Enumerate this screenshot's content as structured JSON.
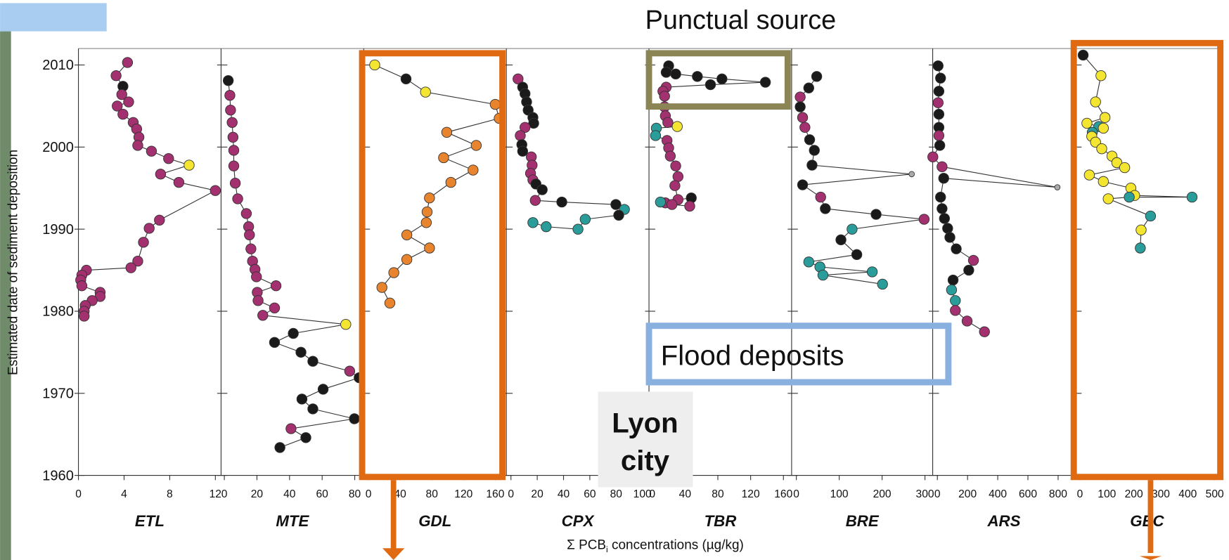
{
  "chart_data": {
    "type": "scatter",
    "ylabel": "Estimated date of sediment deposition",
    "xlabel": [
      "Σ PCB",
      "i",
      " concentrations (µg/kg)"
    ],
    "ylim": [
      1960,
      2012
    ],
    "yticks": [
      1960,
      1970,
      1980,
      1990,
      2000,
      2010
    ],
    "panels": [
      {
        "name": "ETL",
        "xlim": [
          0,
          12.5
        ],
        "xticks": [
          0,
          4,
          8,
          12
        ],
        "x": [
          4.3,
          3.3,
          3.9,
          3.8,
          4.4,
          3.4,
          3.9,
          4.8,
          5.1,
          5.3,
          5.2,
          6.4,
          7.9,
          9.7,
          7.2,
          8.8,
          12,
          7.1,
          6.2,
          5.7,
          5.2,
          4.6,
          0.7,
          0.3,
          0.2,
          0.3,
          1.9,
          1.9,
          1.2,
          0.6,
          0.5,
          0.5
        ],
        "y": [
          2010.3,
          2008.7,
          2007.4,
          2006.4,
          2005.5,
          2005.0,
          2004.0,
          2003.0,
          2002.2,
          2001.2,
          2000.2,
          1999.5,
          1998.6,
          1997.8,
          1996.7,
          1995.7,
          1994.7,
          1991.1,
          1990.1,
          1988.4,
          1986.1,
          1985.3,
          1985.0,
          1984.4,
          1983.8,
          1983.1,
          1982.3,
          1981.8,
          1981.3,
          1980.7,
          1980.0,
          1979.4
        ],
        "colors": [
          "#a3306f",
          "#a3306f",
          "#1a1a1a",
          "#a3306f",
          "#a3306f",
          "#a3306f",
          "#a3306f",
          "#a3306f",
          "#a3306f",
          "#a3306f",
          "#a3306f",
          "#a3306f",
          "#a3306f",
          "#f3e530",
          "#a3306f",
          "#a3306f",
          "#a3306f",
          "#a3306f",
          "#a3306f",
          "#a3306f",
          "#a3306f",
          "#a3306f",
          "#a3306f",
          "#a3306f",
          "#a3306f",
          "#a3306f",
          "#a3306f",
          "#a3306f",
          "#a3306f",
          "#a3306f",
          "#a3306f",
          "#a3306f"
        ]
      },
      {
        "name": "MTE",
        "xlim": [
          -2,
          85.5
        ],
        "xticks": [
          0,
          20,
          40,
          60,
          80
        ],
        "x": [
          2.4,
          3.4,
          3.8,
          4.8,
          5.3,
          5.8,
          5.8,
          6.7,
          8.2,
          13.5,
          14.9,
          15.4,
          16.3,
          17.3,
          18.8,
          19.7,
          31.7,
          20.2,
          20.7,
          30.8,
          23.6,
          74.5,
          42.3,
          30.8,
          47,
          54.3,
          76.9,
          82.7,
          60.6,
          47.6,
          54.3,
          79.8,
          40.9,
          50,
          34.1
        ],
        "y": [
          2008.1,
          2006.3,
          2004.5,
          2003.0,
          2001.2,
          1999.6,
          1997.7,
          1995.6,
          1993.7,
          1991.9,
          1990.3,
          1989.3,
          1987.6,
          1986.1,
          1985.1,
          1984.2,
          1983.1,
          1982.3,
          1981.3,
          1980.4,
          1979.5,
          1978.4,
          1977.3,
          1976.2,
          1975.0,
          1973.9,
          1972.7,
          1971.9,
          1970.5,
          1969.3,
          1968.1,
          1966.9,
          1965.7,
          1964.6,
          1963.4
        ],
        "colors": [
          "#1a1a1a",
          "#a3306f",
          "#a3306f",
          "#a3306f",
          "#a3306f",
          "#a3306f",
          "#a3306f",
          "#a3306f",
          "#a3306f",
          "#a3306f",
          "#a3306f",
          "#a3306f",
          "#a3306f",
          "#a3306f",
          "#a3306f",
          "#a3306f",
          "#a3306f",
          "#a3306f",
          "#a3306f",
          "#a3306f",
          "#a3306f",
          "#f3e530",
          "#1a1a1a",
          "#1a1a1a",
          "#1a1a1a",
          "#1a1a1a",
          "#a3306f",
          "#1a1a1a",
          "#1a1a1a",
          "#1a1a1a",
          "#1a1a1a",
          "#1a1a1a",
          "#a3306f",
          "#1a1a1a",
          "#1a1a1a"
        ]
      },
      {
        "name": "GDL",
        "xlim": [
          -6,
          174
        ],
        "xticks": [
          0,
          40,
          80,
          120,
          160
        ],
        "x": [
          7.9,
          47.4,
          72,
          160,
          165,
          98.8,
          136,
          94.8,
          132,
          104,
          77,
          74,
          73,
          48.4,
          77,
          48.4,
          32,
          17,
          27
        ],
        "y": [
          2010.0,
          2008.3,
          2006.7,
          2005.2,
          2003.5,
          2001.8,
          2000.2,
          1998.7,
          1997.2,
          1995.7,
          1993.8,
          1992.1,
          1990.8,
          1989.3,
          1987.7,
          1986.3,
          1984.7,
          1982.9,
          1981.0
        ],
        "colors": [
          "#f3e530",
          "#1a1a1a",
          "#f3e530",
          "#e8842e",
          "#e8842e",
          "#e8842e",
          "#e8842e",
          "#e8842e",
          "#e8842e",
          "#e8842e",
          "#e8842e",
          "#e8842e",
          "#e8842e",
          "#e8842e",
          "#e8842e",
          "#e8842e",
          "#e8842e",
          "#e8842e",
          "#e8842e"
        ]
      },
      {
        "name": "CPX",
        "xlim": [
          -3.5,
          105
        ],
        "xticks": [
          0,
          20,
          40,
          60,
          80,
          100
        ],
        "x": [
          5.4,
          8.9,
          10.7,
          11.9,
          13.1,
          16.7,
          17.3,
          10.7,
          7.1,
          8.3,
          8.9,
          15.5,
          16.1,
          14.9,
          16.7,
          19,
          23.8,
          18.5,
          38.7,
          79.8,
          86.3,
          82,
          56.5,
          51,
          26.8,
          16.7
        ],
        "y": [
          2008.3,
          2007.3,
          2006.5,
          2005.5,
          2004.5,
          2003.6,
          2002.9,
          2002.4,
          2001.4,
          2000.3,
          1999.5,
          1998.8,
          1997.8,
          1996.8,
          1996.0,
          1995.5,
          1994.8,
          1993.5,
          1993.3,
          1993.0,
          1992.4,
          1991.7,
          1991.2,
          1990.0,
          1990.3,
          1990.8
        ],
        "colors": [
          "#a3306f",
          "#1a1a1a",
          "#1a1a1a",
          "#1a1a1a",
          "#1a1a1a",
          "#1a1a1a",
          "#1a1a1a",
          "#a3306f",
          "#a3306f",
          "#1a1a1a",
          "#1a1a1a",
          "#a3306f",
          "#a3306f",
          "#a3306f",
          "#a3306f",
          "#1a1a1a",
          "#1a1a1a",
          "#a3306f",
          "#1a1a1a",
          "#1a1a1a",
          "#2a9d9b",
          "#1a1a1a",
          "#2a9d9b",
          "#2a9d9b",
          "#2a9d9b",
          "#2a9d9b"
        ]
      },
      {
        "name": "TBR",
        "xlim": [
          -4,
          170
        ],
        "xticks": [
          0,
          40,
          80,
          120,
          160
        ],
        "x": [
          20,
          17,
          28.6,
          55,
          85,
          138,
          71,
          17,
          13,
          15,
          15,
          16,
          19,
          30.5,
          5,
          4,
          18,
          20,
          22,
          28.6,
          31.4,
          27.6,
          31.4,
          16,
          10,
          47.6,
          45.7,
          24
        ],
        "y": [
          2009.9,
          2009.1,
          2008.9,
          2008.6,
          2008.3,
          2007.9,
          2007.6,
          2007.3,
          2006.8,
          2006.2,
          2004.9,
          2003.8,
          2003.0,
          2002.5,
          2002.3,
          2001.4,
          2000.8,
          1999.9,
          1998.9,
          1997.7,
          1996.4,
          1995.3,
          1993.6,
          1993.2,
          1993.3,
          1993.8,
          1992.8,
          1993.0
        ],
        "colors": [
          "#1a1a1a",
          "#1a1a1a",
          "#1a1a1a",
          "#1a1a1a",
          "#1a1a1a",
          "#1a1a1a",
          "#1a1a1a",
          "#a3306f",
          "#a3306f",
          "#a3306f",
          "#a3306f",
          "#a3306f",
          "#a3306f",
          "#f3e530",
          "#2a9d9b",
          "#2a9d9b",
          "#a3306f",
          "#a3306f",
          "#a3306f",
          "#a3306f",
          "#a3306f",
          "#a3306f",
          "#a3306f",
          "#a3306f",
          "#2a9d9b",
          "#1a1a1a",
          "#a3306f",
          "#a3306f"
        ]
      },
      {
        "name": "BRE",
        "xlim": [
          -11,
          318
        ],
        "xticks": [
          0,
          100,
          200,
          300
        ],
        "x": [
          47.5,
          29,
          9,
          9,
          14.6,
          20,
          31,
          42,
          36.6,
          269,
          14.6,
          56.7,
          67.6,
          186,
          298,
          130,
          104,
          141,
          29,
          55,
          177,
          62,
          201
        ],
        "y": [
          2008.6,
          2007.2,
          2006.1,
          2004.9,
          2003.6,
          2002.4,
          2000.9,
          1999.6,
          1997.8,
          1996.7,
          1995.4,
          1993.9,
          1992.5,
          1991.8,
          1991.2,
          1990.0,
          1988.7,
          1986.9,
          1986.0,
          1985.4,
          1984.8,
          1984.4,
          1983.3
        ],
        "colors": [
          "#1a1a1a",
          "#1a1a1a",
          "#a3306f",
          "#1a1a1a",
          "#a3306f",
          "#a3306f",
          "#1a1a1a",
          "#1a1a1a",
          "#1a1a1a",
          "#aaaaaa",
          "#1a1a1a",
          "#a3306f",
          "#1a1a1a",
          "#1a1a1a",
          "#a3306f",
          "#2a9d9b",
          "#1a1a1a",
          "#1a1a1a",
          "#2a9d9b",
          "#2a9d9b",
          "#2a9d9b",
          "#2a9d9b",
          "#2a9d9b"
        ]
      },
      {
        "name": "ARS",
        "xlim": [
          -31,
          914
        ],
        "xticks": [
          0,
          200,
          400,
          600,
          800
        ],
        "x": [
          5,
          21,
          10,
          5,
          10,
          10,
          10,
          16,
          -30,
          31,
          795,
          42,
          21,
          31,
          47,
          68,
          83,
          125,
          239,
          208,
          104,
          94,
          119,
          119,
          197,
          312
        ],
        "y": [
          2009.9,
          2008.4,
          2006.8,
          2005.4,
          2004.0,
          2002.4,
          2001.4,
          2000.2,
          1998.8,
          1997.6,
          1995.1,
          1996.2,
          1993.9,
          1992.5,
          1991.3,
          1990.1,
          1989.0,
          1987.6,
          1986.2,
          1985.0,
          1983.8,
          1982.6,
          1981.3,
          1980.1,
          1978.8,
          1977.5
        ],
        "colors": [
          "#1a1a1a",
          "#1a1a1a",
          "#1a1a1a",
          "#a3306f",
          "#1a1a1a",
          "#1a1a1a",
          "#a3306f",
          "#1a1a1a",
          "#a3306f",
          "#a3306f",
          "#aaaaaa",
          "#1a1a1a",
          "#1a1a1a",
          "#1a1a1a",
          "#1a1a1a",
          "#1a1a1a",
          "#1a1a1a",
          "#1a1a1a",
          "#a3306f",
          "#1a1a1a",
          "#1a1a1a",
          "#2a9d9b",
          "#2a9d9b",
          "#a3306f",
          "#a3306f",
          "#a3306f"
        ]
      },
      {
        "name": "GEC",
        "xlim": [
          -17,
          515
        ],
        "xticks": [
          0,
          100,
          200,
          300,
          400,
          500
        ],
        "x": [
          12,
          78,
          58,
          93,
          26,
          70,
          87,
          46,
          44,
          58,
          81,
          119,
          137,
          166,
          35,
          87,
          189,
          203,
          416,
          183,
          105,
          262,
          227,
          224
        ],
        "y": [
          2011.2,
          2008.7,
          2005.5,
          2003.6,
          2002.9,
          2002.5,
          2002.3,
          2001.8,
          2001.3,
          2000.6,
          1999.8,
          1998.9,
          1998.1,
          1997.5,
          1996.6,
          1995.8,
          1995.0,
          1994.1,
          1993.9,
          1993.9,
          1993.7,
          1991.6,
          1989.9,
          1987.7
        ],
        "colors": [
          "#1a1a1a",
          "#f3e530",
          "#f3e530",
          "#f3e530",
          "#f3e530",
          "#2a9d9b",
          "#f3e530",
          "#2a9d9b",
          "#f3e530",
          "#f3e530",
          "#f3e530",
          "#f3e530",
          "#f3e530",
          "#f3e530",
          "#f3e530",
          "#f3e530",
          "#f3e530",
          "#f3e530",
          "#2a9d9b",
          "#2a9d9b",
          "#f3e530",
          "#2a9d9b",
          "#f3e530",
          "#2a9d9b"
        ]
      }
    ]
  },
  "annotations": {
    "punctual_source": "Punctual source",
    "flood_deposits": "Flood deposits",
    "lyon_city": [
      "Lyon",
      "city"
    ]
  }
}
